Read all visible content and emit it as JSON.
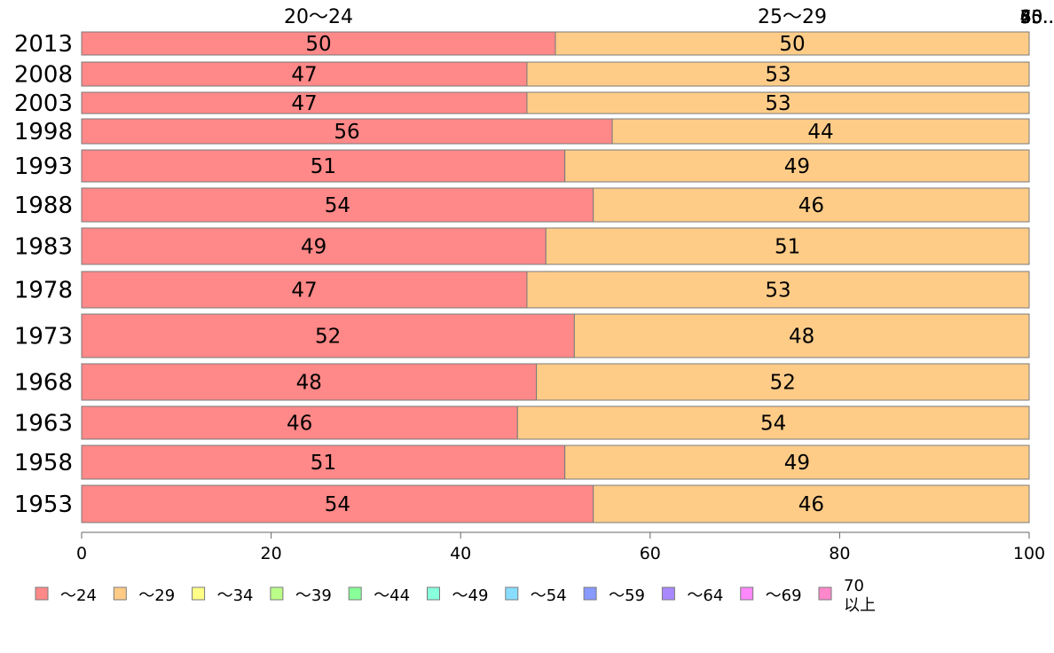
{
  "colors": {
    "series": [
      "#ff8888",
      "#ffcc88",
      "#ffff88",
      "#bbff88",
      "#88ff99",
      "#88ffdd",
      "#88ddff",
      "#8899ff",
      "#aa88ff",
      "#ff88ff",
      "#ff88cc"
    ],
    "bar_stroke": "#7a7a7a",
    "axis": "#666666"
  },
  "chart_data": {
    "type": "bar",
    "orientation": "horizontal",
    "stacked": true,
    "categories": [
      "2013",
      "2008",
      "2003",
      "1998",
      "1993",
      "1988",
      "1983",
      "1978",
      "1973",
      "1968",
      "1963",
      "1958",
      "1953"
    ],
    "series": [
      {
        "name": "～24",
        "values": [
          50,
          47,
          47,
          56,
          51,
          54,
          49,
          47,
          52,
          48,
          46,
          51,
          54
        ]
      },
      {
        "name": "～29",
        "values": [
          50,
          53,
          53,
          44,
          49,
          46,
          51,
          53,
          48,
          52,
          54,
          49,
          46
        ]
      },
      {
        "name": "～34",
        "values": [
          0,
          0,
          0,
          0,
          0,
          0,
          0,
          0,
          0,
          0,
          0,
          0,
          0
        ]
      },
      {
        "name": "～39",
        "values": [
          0,
          0,
          0,
          0,
          0,
          0,
          0,
          0,
          0,
          0,
          0,
          0,
          0
        ]
      },
      {
        "name": "～44",
        "values": [
          0,
          0,
          0,
          0,
          0,
          0,
          0,
          0,
          0,
          0,
          0,
          0,
          0
        ]
      },
      {
        "name": "～49",
        "values": [
          0,
          0,
          0,
          0,
          0,
          0,
          0,
          0,
          0,
          0,
          0,
          0,
          0
        ]
      },
      {
        "name": "～54",
        "values": [
          0,
          0,
          0,
          0,
          0,
          0,
          0,
          0,
          0,
          0,
          0,
          0,
          0
        ]
      },
      {
        "name": "～59",
        "values": [
          0,
          0,
          0,
          0,
          0,
          0,
          0,
          0,
          0,
          0,
          0,
          0,
          0
        ]
      },
      {
        "name": "～64",
        "values": [
          0,
          0,
          0,
          0,
          0,
          0,
          0,
          0,
          0,
          0,
          0,
          0,
          0
        ]
      },
      {
        "name": "～69",
        "values": [
          0,
          0,
          0,
          0,
          0,
          0,
          0,
          0,
          0,
          0,
          0,
          0,
          0
        ]
      },
      {
        "name": "70\n以上",
        "values": [
          0,
          0,
          0,
          0,
          0,
          0,
          0,
          0,
          0,
          0,
          0,
          0,
          0
        ]
      }
    ],
    "top_labels": [
      "20～24",
      "25～29",
      "30...",
      "35...",
      "40...",
      "45...",
      "50...",
      "55...",
      "60...",
      "65...",
      "70..."
    ],
    "xlim": [
      0,
      100
    ],
    "xticks": [
      0,
      20,
      40,
      60,
      80,
      100
    ],
    "legend_position": "bottom",
    "grid": false
  }
}
